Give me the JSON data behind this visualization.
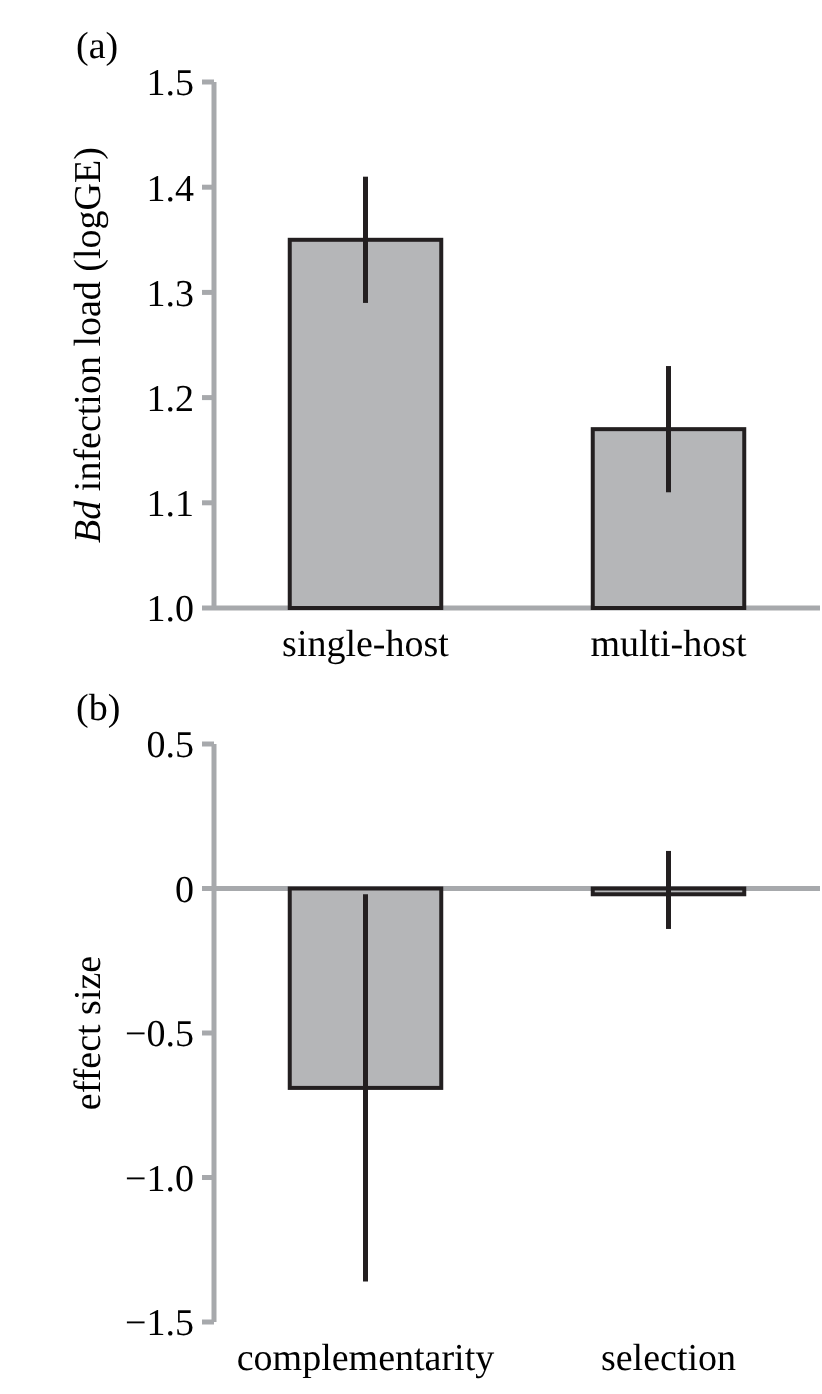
{
  "chart_data": [
    {
      "type": "bar",
      "title": "(a)",
      "ylabel": "Bd infection load (logGE)",
      "categories": [
        "single-host",
        "multi-host"
      ],
      "values": [
        1.35,
        1.17
      ],
      "errors": [
        [
          1.29,
          1.41
        ],
        [
          1.11,
          1.23
        ]
      ],
      "color": "#b5b6b8",
      "ylim": [
        1.0,
        1.5
      ],
      "yticks": [
        {
          "value": 1.0,
          "label": "1.0"
        },
        1.1,
        1.2,
        1.3,
        1.4,
        1.5
      ]
    },
    {
      "type": "bar",
      "title": "(b)",
      "ylabel": "effect size",
      "categories": [
        "complementarity",
        "selection"
      ],
      "values": [
        -0.69,
        -0.02
      ],
      "errors": [
        [
          -1.36,
          -0.02
        ],
        [
          -0.14,
          0.13
        ]
      ],
      "color": "#b5b6b8",
      "ylim": [
        -1.5,
        0.5
      ],
      "yticks": [
        {
          "value": -1.5,
          "label": "−1.5"
        },
        {
          "value": -1.0,
          "label": "−1.0"
        },
        {
          "value": -0.5,
          "label": "−0.5"
        },
        0,
        0.5
      ]
    }
  ]
}
